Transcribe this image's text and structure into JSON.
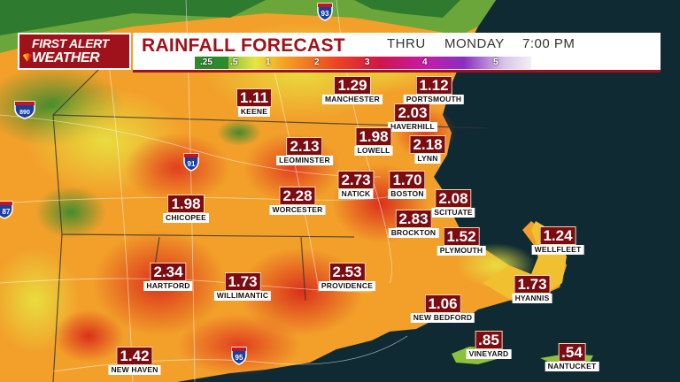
{
  "header": {
    "logo_line1": "FIRST ALERT",
    "logo_line2": "WEATHER",
    "title": "RAINFALL FORECAST",
    "thru": "THRU",
    "day": "MONDAY",
    "time": "7:00 PM"
  },
  "legend": {
    "ticks": [
      ".25",
      ".5",
      "1",
      "2",
      "3",
      "4",
      "5"
    ]
  },
  "highways": [
    "93",
    "890",
    "91",
    "87",
    "95"
  ],
  "cities": [
    {
      "name": "KEENE",
      "value": "1.11"
    },
    {
      "name": "MANCHESTER",
      "value": "1.29"
    },
    {
      "name": "PORTSMOUTH",
      "value": "1.12"
    },
    {
      "name": "HAVERHILL",
      "value": "2.03"
    },
    {
      "name": "LOWELL",
      "value": "1.98"
    },
    {
      "name": "LYNN",
      "value": "2.18"
    },
    {
      "name": "LEOMINSTER",
      "value": "2.13"
    },
    {
      "name": "NATICK",
      "value": "2.73"
    },
    {
      "name": "BOSTON",
      "value": "1.70"
    },
    {
      "name": "SCITUATE",
      "value": "2.08"
    },
    {
      "name": "CHICOPEE",
      "value": "1.98"
    },
    {
      "name": "WORCESTER",
      "value": "2.28"
    },
    {
      "name": "BROCKTON",
      "value": "2.83"
    },
    {
      "name": "PLYMOUTH",
      "value": "1.52"
    },
    {
      "name": "WELLFLEET",
      "value": "1.24"
    },
    {
      "name": "HARTFORD",
      "value": "2.34"
    },
    {
      "name": "WILLIMANTIC",
      "value": "1.73"
    },
    {
      "name": "PROVIDENCE",
      "value": "2.53"
    },
    {
      "name": "HYANNIS",
      "value": "1.73"
    },
    {
      "name": "NEW BEDFORD",
      "value": "1.06"
    },
    {
      "name": "VINEYARD",
      "value": ".85"
    },
    {
      "name": "NANTUCKET",
      "value": ".54"
    },
    {
      "name": "NEW HAVEN",
      "value": "1.42"
    }
  ],
  "colors": {
    "brand_red": "#a0121b",
    "value_box": "#7a0c12",
    "ocean": "#0f2a33"
  }
}
